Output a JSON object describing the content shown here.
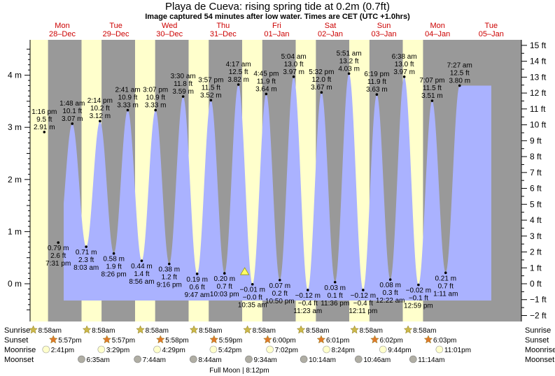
{
  "title": "Playa de Cueva: rising  spring tide at 0.2m (0.7ft)",
  "subtitle": "Image captured 54 minutes after low water. Times are CET (UTC +1.0hrs)",
  "colors": {
    "night": "#999999",
    "day": "#ffffcc",
    "water": "#aab2ff",
    "sun": "#ccb84a",
    "sunset": "#e07a2a",
    "moon_light": "#ffffcc",
    "moon_dark": "#b0aea4",
    "day_label": "#cc0000"
  },
  "chart_data": {
    "type": "area",
    "ylabel_left": "m",
    "ylabel_right": "ft",
    "ylim_m": [
      -0.65,
      4.65
    ],
    "yticks_m": [
      "4 m",
      "3 m",
      "2 m",
      "1 m",
      "0 m"
    ],
    "yticks_ft": [
      "15 ft",
      "14 ft",
      "13 ft",
      "12 ft",
      "11 ft",
      "10 ft",
      "9 ft",
      "8 ft",
      "7 ft",
      "6 ft",
      "5 ft",
      "4 ft",
      "3 ft",
      "2 ft",
      "1 ft",
      "0 ft",
      "−1 ft",
      "−2 ft"
    ],
    "days": [
      {
        "dow": "Mon",
        "date": "28–Dec"
      },
      {
        "dow": "Tue",
        "date": "29–Dec"
      },
      {
        "dow": "Wed",
        "date": "30–Dec"
      },
      {
        "dow": "Thu",
        "date": "31–Dec"
      },
      {
        "dow": "Fri",
        "date": "01–Jan"
      },
      {
        "dow": "Sat",
        "date": "02–Jan"
      },
      {
        "dow": "Sun",
        "date": "03–Jan"
      },
      {
        "dow": "Mon",
        "date": "04–Jan"
      },
      {
        "dow": "Tue",
        "date": "05–Jan"
      }
    ],
    "extremes": [
      {
        "type": "high",
        "time": "1:16 pm",
        "ft": "9.5 ft",
        "m": 2.91,
        "mt": "2.91 m",
        "day": 0,
        "hour": 13.27
      },
      {
        "type": "low",
        "time": "7:31 pm",
        "ft": "2.6 ft",
        "m": 0.79,
        "mt": "0.79 m",
        "day": 0,
        "hour": 19.52
      },
      {
        "type": "high",
        "time": "1:48 am",
        "ft": "10.1 ft",
        "m": 3.07,
        "mt": "3.07 m",
        "day": 1,
        "hour": 1.8
      },
      {
        "type": "low",
        "time": "8:03 am",
        "ft": "2.3 ft",
        "m": 0.71,
        "mt": "0.71 m",
        "day": 1,
        "hour": 8.05
      },
      {
        "type": "high",
        "time": "2:14 pm",
        "ft": "10.2 ft",
        "m": 3.12,
        "mt": "3.12 m",
        "day": 1,
        "hour": 14.23
      },
      {
        "type": "low",
        "time": "8:26 pm",
        "ft": "1.9 ft",
        "m": 0.58,
        "mt": "0.58 m",
        "day": 1,
        "hour": 20.43
      },
      {
        "type": "high",
        "time": "2:41 am",
        "ft": "10.9 ft",
        "m": 3.33,
        "mt": "3.33 m",
        "day": 2,
        "hour": 2.68
      },
      {
        "type": "low",
        "time": "8:56 am",
        "ft": "1.4 ft",
        "m": 0.44,
        "mt": "0.44 m",
        "day": 2,
        "hour": 8.93
      },
      {
        "type": "high",
        "time": "3:07 pm",
        "ft": "10.9 ft",
        "m": 3.33,
        "mt": "3.33 m",
        "day": 2,
        "hour": 15.12
      },
      {
        "type": "low",
        "time": "9:16 pm",
        "ft": "1.2 ft",
        "m": 0.38,
        "mt": "0.38 m",
        "day": 2,
        "hour": 21.27
      },
      {
        "type": "high",
        "time": "3:30 am",
        "ft": "11.8 ft",
        "m": 3.59,
        "mt": "3.59 m",
        "day": 3,
        "hour": 3.5
      },
      {
        "type": "low",
        "time": "9:47 am",
        "ft": "0.6 ft",
        "m": 0.19,
        "mt": "0.19 m",
        "day": 3,
        "hour": 9.78
      },
      {
        "type": "high",
        "time": "3:57 pm",
        "ft": "11.5 ft",
        "m": 3.52,
        "mt": "3.52 m",
        "day": 3,
        "hour": 15.95
      },
      {
        "type": "low",
        "time": "10:03 pm",
        "ft": "0.7 ft",
        "m": 0.2,
        "mt": "0.20 m",
        "day": 3,
        "hour": 22.05
      },
      {
        "type": "high",
        "time": "4:17 am",
        "ft": "12.5 ft",
        "m": 3.82,
        "mt": "3.82 m",
        "day": 4,
        "hour": 4.28
      },
      {
        "type": "low",
        "time": "10:35 am",
        "ft": "−0.0 ft",
        "m": -0.01,
        "mt": "−0.01 m",
        "day": 4,
        "hour": 10.58
      },
      {
        "type": "high",
        "time": "4:45 pm",
        "ft": "11.9 ft",
        "m": 3.64,
        "mt": "3.64 m",
        "day": 4,
        "hour": 16.75
      },
      {
        "type": "low",
        "time": "10:50 pm",
        "ft": "0.2 ft",
        "m": 0.07,
        "mt": "0.07 m",
        "day": 4,
        "hour": 22.83
      },
      {
        "type": "high",
        "time": "5:04 am",
        "ft": "13.0 ft",
        "m": 3.97,
        "mt": "3.97 m",
        "day": 5,
        "hour": 5.07
      },
      {
        "type": "low",
        "time": "11:23 am",
        "ft": "−0.4 ft",
        "m": -0.12,
        "mt": "−0.12 m",
        "day": 5,
        "hour": 11.38
      },
      {
        "type": "high",
        "time": "5:32 pm",
        "ft": "12.0 ft",
        "m": 3.67,
        "mt": "3.67 m",
        "day": 5,
        "hour": 17.53
      },
      {
        "type": "low",
        "time": "11:36 pm",
        "ft": "0.1 ft",
        "m": 0.03,
        "mt": "0.03 m",
        "day": 5,
        "hour": 23.6
      },
      {
        "type": "high",
        "time": "5:51 am",
        "ft": "13.2 ft",
        "m": 4.03,
        "mt": "4.03 m",
        "day": 6,
        "hour": 5.85
      },
      {
        "type": "low",
        "time": "12:11 pm",
        "ft": "−0.4 ft",
        "m": -0.12,
        "mt": "−0.12 m",
        "day": 6,
        "hour": 12.18
      },
      {
        "type": "high",
        "time": "6:19 pm",
        "ft": "11.9 ft",
        "m": 3.63,
        "mt": "3.63 m",
        "day": 6,
        "hour": 18.32
      },
      {
        "type": "low",
        "time": "12:22 am",
        "ft": "0.3 ft",
        "m": 0.08,
        "mt": "0.08 m",
        "day": 7,
        "hour": 0.37
      },
      {
        "type": "high",
        "time": "6:38 am",
        "ft": "13.0 ft",
        "m": 3.97,
        "mt": "3.97 m",
        "day": 7,
        "hour": 6.63
      },
      {
        "type": "low",
        "time": "12:59 pm",
        "ft": "−0.1 ft",
        "m": -0.02,
        "mt": "−0.02 m",
        "day": 7,
        "hour": 12.98
      },
      {
        "type": "high",
        "time": "7:07 pm",
        "ft": "11.5 ft",
        "m": 3.51,
        "mt": "3.51 m",
        "day": 7,
        "hour": 19.12
      },
      {
        "type": "low",
        "time": "1:11 am",
        "ft": "0.7 ft",
        "m": 0.21,
        "mt": "0.21 m",
        "day": 8,
        "hour": 1.18
      },
      {
        "type": "high",
        "time": "7:27 am",
        "ft": "12.5 ft",
        "m": 3.8,
        "mt": "3.80 m",
        "day": 8,
        "hour": 7.45
      }
    ],
    "current": {
      "day": 4,
      "hour": 11.5,
      "m": 0.2
    }
  },
  "astro": {
    "row_labels": {
      "sunrise": "Sunrise",
      "sunset": "Sunset",
      "moonrise": "Moonrise",
      "moonset": "Moonset"
    },
    "sunrise": [
      {
        "day": 0,
        "hour": 8.97,
        "text": "8:58am"
      },
      {
        "day": 1,
        "hour": 8.97,
        "text": "8:58am"
      },
      {
        "day": 2,
        "hour": 8.97,
        "text": "8:58am"
      },
      {
        "day": 3,
        "hour": 8.97,
        "text": "8:58am"
      },
      {
        "day": 4,
        "hour": 8.97,
        "text": "8:58am"
      },
      {
        "day": 5,
        "hour": 8.97,
        "text": "8:58am"
      },
      {
        "day": 6,
        "hour": 8.97,
        "text": "8:58am"
      },
      {
        "day": 7,
        "hour": 8.97,
        "text": "8:58am"
      }
    ],
    "sunset": [
      {
        "day": 0,
        "hour": 17.95,
        "text": "5:57pm"
      },
      {
        "day": 1,
        "hour": 17.95,
        "text": "5:57pm"
      },
      {
        "day": 2,
        "hour": 17.97,
        "text": "5:58pm"
      },
      {
        "day": 3,
        "hour": 17.98,
        "text": "5:59pm"
      },
      {
        "day": 4,
        "hour": 18.0,
        "text": "6:00pm"
      },
      {
        "day": 5,
        "hour": 18.02,
        "text": "6:01pm"
      },
      {
        "day": 6,
        "hour": 18.03,
        "text": "6:02pm"
      },
      {
        "day": 7,
        "hour": 18.05,
        "text": "6:03pm"
      }
    ],
    "moonrise": [
      {
        "day": 0,
        "hour": 14.68,
        "text": "2:41pm"
      },
      {
        "day": 1,
        "hour": 15.48,
        "text": "3:29pm"
      },
      {
        "day": 2,
        "hour": 16.48,
        "text": "4:29pm"
      },
      {
        "day": 3,
        "hour": 17.7,
        "text": "5:42pm"
      },
      {
        "day": 4,
        "hour": 19.03,
        "text": "7:02pm"
      },
      {
        "day": 5,
        "hour": 20.4,
        "text": "8:24pm"
      },
      {
        "day": 6,
        "hour": 21.73,
        "text": "9:44pm"
      },
      {
        "day": 7,
        "hour": 23.02,
        "text": "11:01pm"
      }
    ],
    "moonset": [
      {
        "day": 1,
        "hour": 6.58,
        "text": "6:35am"
      },
      {
        "day": 2,
        "hour": 7.73,
        "text": "7:44am"
      },
      {
        "day": 3,
        "hour": 8.73,
        "text": "8:44am"
      },
      {
        "day": 4,
        "hour": 9.57,
        "text": "9:34am"
      },
      {
        "day": 5,
        "hour": 10.23,
        "text": "10:14am"
      },
      {
        "day": 6,
        "hour": 10.77,
        "text": "10:46am"
      },
      {
        "day": 7,
        "hour": 11.23,
        "text": "11:14am"
      }
    ],
    "full_moon": "Full Moon | 8:12pm"
  }
}
